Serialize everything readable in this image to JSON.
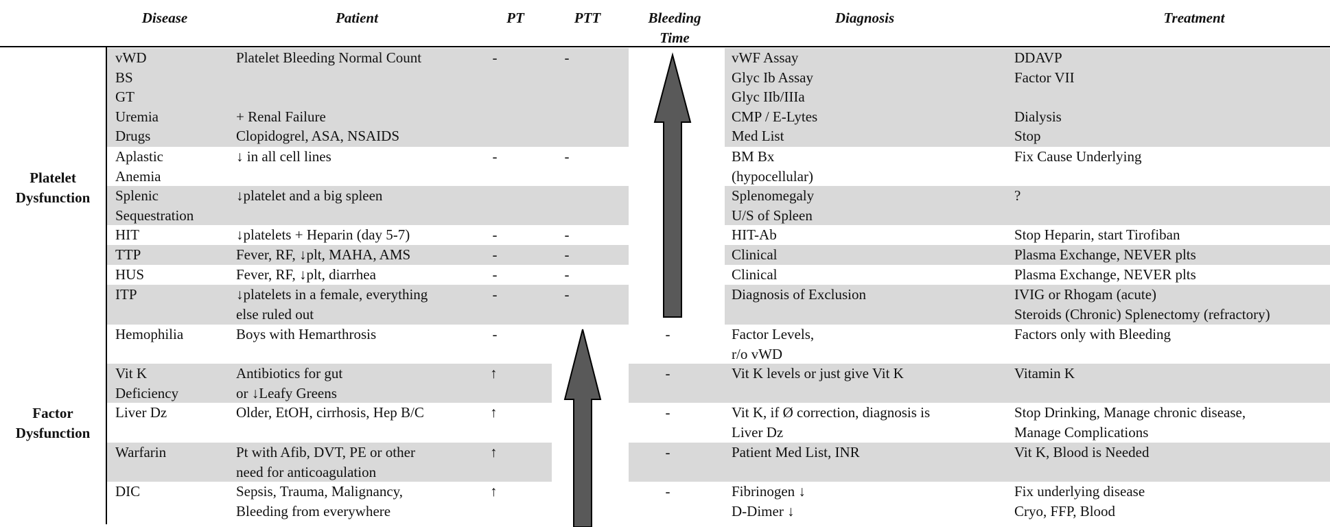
{
  "headers": {
    "disease": "Disease",
    "patient": "Patient",
    "pt": "PT",
    "ptt": "PTT",
    "bleeding_time": "Bleeding\nTime",
    "diagnosis": "Diagnosis",
    "treatment": "Treatment"
  },
  "groups": {
    "platelet": "Platelet\nDysfunction",
    "factor": "Factor\nDysfunction"
  },
  "rows": [
    {
      "disease": "vWD\nBS\nGT\nUremia\nDrugs",
      "patient": "Platelet Bleeding Normal Count\n\n\n+ Renal Failure\nClopidogrel, ASA, NSAIDS",
      "pt": "-",
      "ptt": "-",
      "bt": "",
      "diagnosis": "vWF Assay\nGlyc Ib Assay\nGlyc IIb/IIIa\nCMP / E-Lytes\nMed List",
      "treatment": "DDAVP\nFactor VII\n\nDialysis\nStop"
    },
    {
      "disease": "Aplastic\nAnemia",
      "patient": "↓ in all cell lines",
      "pt": "-",
      "ptt": "-",
      "bt": "",
      "diagnosis": "BM Bx\n (hypocellular)",
      "treatment": "Fix Cause Underlying"
    },
    {
      "disease": "Splenic\nSequestration",
      "patient": "↓platelet and a big spleen",
      "pt": "",
      "ptt": "",
      "bt": "",
      "diagnosis": "Splenomegaly\nU/S of Spleen",
      "treatment": "?"
    },
    {
      "disease": "HIT",
      "patient": "↓platelets + Heparin (day 5-7)",
      "pt": "-",
      "ptt": "-",
      "bt": "",
      "diagnosis": "HIT-Ab",
      "treatment": "Stop Heparin, start Tirofiban"
    },
    {
      "disease": "TTP",
      "patient": "Fever, RF, ↓plt, MAHA, AMS",
      "pt": "-",
      "ptt": "-",
      "bt": "",
      "diagnosis": "Clinical",
      "treatment": "Plasma Exchange, NEVER plts"
    },
    {
      "disease": "HUS",
      "patient": "Fever, RF, ↓plt, diarrhea",
      "pt": "-",
      "ptt": "-",
      "bt": "",
      "diagnosis": "Clinical",
      "treatment": "Plasma Exchange, NEVER plts"
    },
    {
      "disease": "ITP",
      "patient": "↓platelets in a female, everything\nelse ruled out",
      "pt": "-",
      "ptt": "-",
      "bt": "",
      "diagnosis": "Diagnosis of Exclusion",
      "treatment": "IVIG or Rhogam (acute)\nSteroids (Chronic) Splenectomy (refractory)"
    },
    {
      "disease": "Hemophilia",
      "patient": "Boys with Hemarthrosis",
      "pt": "-",
      "ptt": "",
      "bt": "-",
      "diagnosis": "Factor Levels,\n r/o vWD",
      "treatment": "Factors only with Bleeding"
    },
    {
      "disease": "Vit K\nDeficiency",
      "patient": "Antibiotics for gut\nor ↓Leafy Greens",
      "pt": "↑",
      "ptt": "",
      "bt": "-",
      "diagnosis": "Vit K levels or just give Vit K",
      "treatment": "Vitamin K"
    },
    {
      "disease": "Liver Dz",
      "patient": "Older, EtOH, cirrhosis, Hep B/C",
      "pt": "↑",
      "ptt": "",
      "bt": "-",
      "diagnosis": "Vit K, if Ø correction, diagnosis is\nLiver Dz",
      "treatment": "Stop Drinking, Manage chronic disease,\nManage Complications"
    },
    {
      "disease": "Warfarin",
      "patient": "Pt with Afib, DVT, PE or other\nneed for anticoagulation",
      "pt": "↑",
      "ptt": "",
      "bt": "-",
      "diagnosis": "Patient Med List, INR",
      "treatment": "Vit K, Blood is Needed"
    },
    {
      "disease": "DIC",
      "patient": "Sepsis, Trauma, Malignancy,\nBleeding from everywhere",
      "pt": "↑",
      "ptt": "",
      "bt": "-",
      "diagnosis": "Fibrinogen ↓\nD-Dimer ↓",
      "treatment": "Fix underlying disease\nCryo, FFP, Blood"
    }
  ]
}
